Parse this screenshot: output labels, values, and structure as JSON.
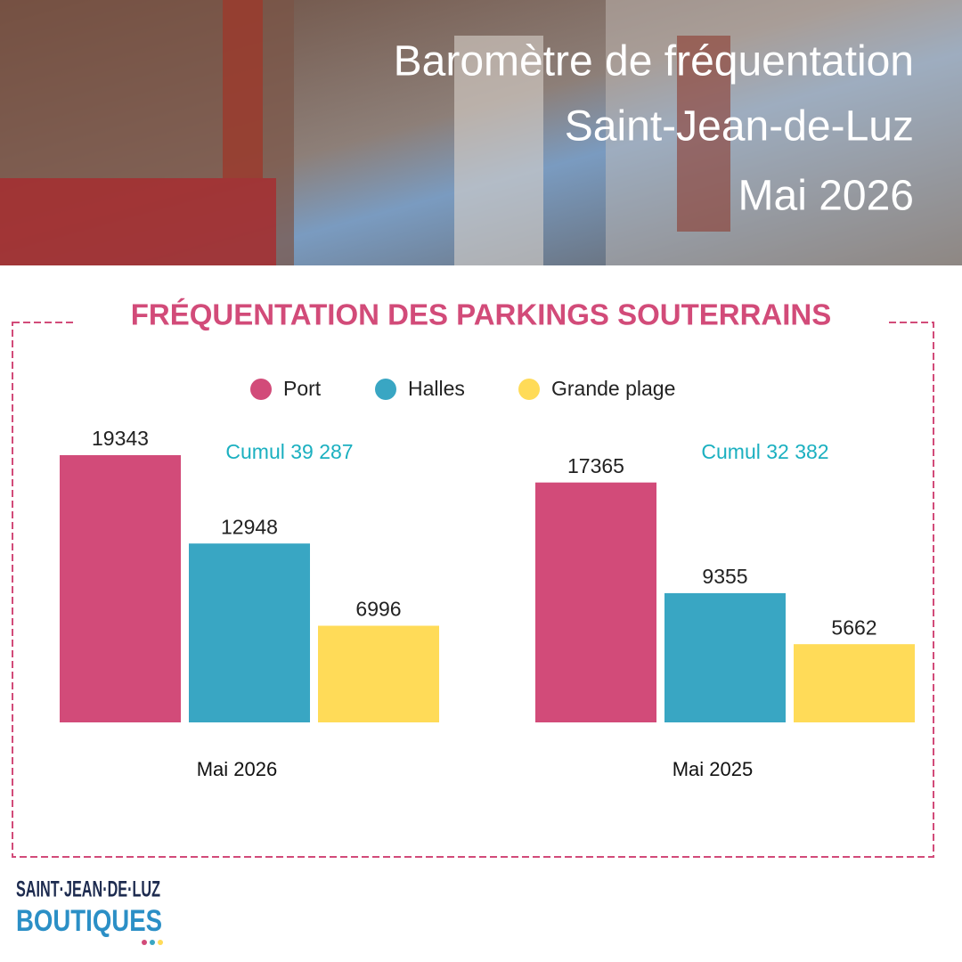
{
  "header": {
    "title": "Baromètre de fréquentation",
    "city": "Saint-Jean-de-Luz",
    "period": "Mai 2026"
  },
  "chart_data": {
    "type": "bar",
    "title": "FRÉQUENTATION DES PARKINGS SOUTERRAINS",
    "categories": [
      "Mai 2026",
      "Mai 2025"
    ],
    "annotations": [
      "Cumul 39 287",
      "Cumul 32 382"
    ],
    "series": [
      {
        "name": "Port",
        "color": "#d24b79",
        "values": [
          19343,
          17365
        ]
      },
      {
        "name": "Halles",
        "color": "#39a6c3",
        "values": [
          12948,
          9355
        ]
      },
      {
        "name": "Grande plage",
        "color": "#ffdb58",
        "values": [
          6996,
          5662
        ]
      }
    ]
  },
  "logo": {
    "line1": "SAINT·JEAN·DE·LUZ",
    "line2": "BOUTIQUES"
  }
}
